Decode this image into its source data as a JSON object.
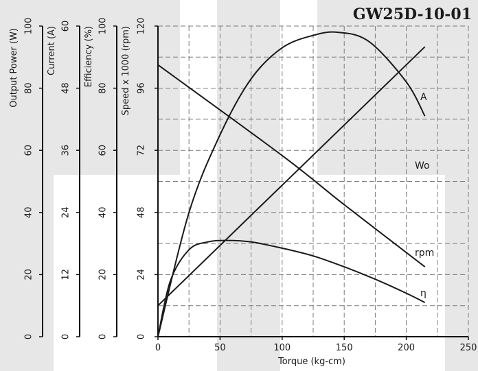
{
  "chart_data": {
    "type": "line",
    "title": "GW25D-10-01",
    "xlabel": "Torque (kg-cm)",
    "xlim": [
      0,
      250
    ],
    "x_ticks": [
      "0",
      "50",
      "100",
      "150",
      "200",
      "250"
    ],
    "grid": true,
    "y_axes": [
      {
        "label": "Output Power (W)",
        "ylim": [
          0,
          100
        ],
        "ticks": [
          "0",
          "20",
          "40",
          "60",
          "80",
          "100"
        ]
      },
      {
        "label": "Current (A)",
        "ylim": [
          0,
          60
        ],
        "ticks": [
          "0",
          "12",
          "24",
          "36",
          "48",
          "60"
        ]
      },
      {
        "label": "Efficiency (%)",
        "ylim": [
          0,
          100
        ],
        "ticks": [
          "0",
          "20",
          "40",
          "60",
          "80",
          "100"
        ]
      },
      {
        "label": "Speed x 1000 (rpm)",
        "ylim": [
          0,
          120
        ],
        "ticks": [
          "0",
          "24",
          "48",
          "72",
          "96",
          "120"
        ]
      }
    ],
    "series": [
      {
        "name": "Wo",
        "axis": 0,
        "x": [
          0,
          25,
          50,
          75,
          100,
          125,
          145,
          170,
          200,
          215
        ],
        "y": [
          0,
          40,
          65,
          83,
          93,
          97,
          98,
          95,
          82,
          71
        ]
      },
      {
        "name": "A",
        "axis": 1,
        "x": [
          0,
          215
        ],
        "y": [
          6,
          56
        ]
      },
      {
        "name": "η",
        "axis": 2,
        "x": [
          0,
          10,
          25,
          40,
          55,
          75,
          100,
          125,
          150,
          175,
          200,
          215
        ],
        "y": [
          0,
          18,
          28,
          30.5,
          31,
          30.5,
          28.5,
          26,
          22.5,
          18.5,
          14,
          11
        ]
      },
      {
        "name": "rpm",
        "axis": 3,
        "x": [
          0,
          100,
          150,
          215
        ],
        "y": [
          105,
          70,
          51,
          27
        ]
      }
    ]
  }
}
